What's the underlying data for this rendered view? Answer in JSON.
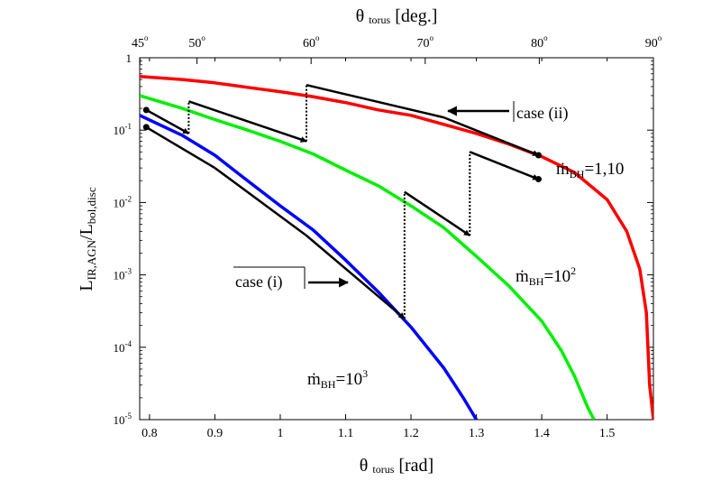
{
  "chart_data": {
    "type": "line",
    "xlabel": {
      "main": "θ",
      "sub": "torus",
      "unit": "[rad]"
    },
    "x2label": {
      "main": "θ",
      "sub": "torus",
      "unit": "[deg.]"
    },
    "ylabel": {
      "main": "L",
      "sub1": "IR,AGN",
      "sep": "/L",
      "sub2": "bol,disc"
    },
    "xlim": [
      0.785,
      1.5708
    ],
    "ylim": [
      1e-05,
      1
    ],
    "yscale": "log",
    "x_ticks": [
      {
        "value": 0.8,
        "label": "0.8"
      },
      {
        "value": 0.9,
        "label": "0.9"
      },
      {
        "value": 1.0,
        "label": "1"
      },
      {
        "value": 1.1,
        "label": "1.1"
      },
      {
        "value": 1.2,
        "label": "1.2"
      },
      {
        "value": 1.3,
        "label": "1.3"
      },
      {
        "value": 1.4,
        "label": "1.4"
      },
      {
        "value": 1.5,
        "label": "1.5"
      }
    ],
    "x2_ticks": [
      {
        "deg": 45,
        "label": "45"
      },
      {
        "deg": 50,
        "label": "50"
      },
      {
        "deg": 60,
        "label": "60"
      },
      {
        "deg": 70,
        "label": "70"
      },
      {
        "deg": 80,
        "label": "80"
      },
      {
        "deg": 90,
        "label": "90"
      }
    ],
    "x2_degree_mark": "o",
    "y_ticks": [
      {
        "value": 1,
        "base": "1",
        "exp": ""
      },
      {
        "value": 0.1,
        "base": "10",
        "exp": "-1"
      },
      {
        "value": 0.01,
        "base": "10",
        "exp": "-2"
      },
      {
        "value": 0.001,
        "base": "10",
        "exp": "-3"
      },
      {
        "value": 0.0001,
        "base": "10",
        "exp": "-4"
      },
      {
        "value": 1e-05,
        "base": "10",
        "exp": "-5"
      }
    ],
    "series": [
      {
        "name": "ṁBH=1,10",
        "color": "#ff0000",
        "x": [
          0.785,
          0.85,
          0.9,
          0.95,
          1.0,
          1.05,
          1.1,
          1.15,
          1.2,
          1.25,
          1.3,
          1.35,
          1.4,
          1.45,
          1.5,
          1.53,
          1.55,
          1.56,
          1.565,
          1.5708
        ],
        "y": [
          0.55,
          0.5,
          0.45,
          0.39,
          0.34,
          0.29,
          0.24,
          0.19,
          0.16,
          0.12,
          0.09,
          0.064,
          0.043,
          0.026,
          0.011,
          0.004,
          0.0012,
          0.0003,
          3e-05,
          1e-05
        ]
      },
      {
        "name": "ṁBH=10^2",
        "color": "#00ee00",
        "x": [
          0.785,
          0.85,
          0.9,
          0.95,
          1.0,
          1.05,
          1.1,
          1.15,
          1.2,
          1.25,
          1.3,
          1.35,
          1.4,
          1.43,
          1.45,
          1.47,
          1.48
        ],
        "y": [
          0.3,
          0.2,
          0.14,
          0.1,
          0.07,
          0.047,
          0.028,
          0.017,
          0.009,
          0.0045,
          0.0018,
          0.0007,
          0.00023,
          9e-05,
          4e-05,
          1.5e-05,
          1e-05
        ]
      },
      {
        "name": "ṁBH=10^3",
        "color": "#0000ff",
        "x": [
          0.785,
          0.85,
          0.9,
          0.95,
          1.0,
          1.05,
          1.1,
          1.15,
          1.2,
          1.25,
          1.28,
          1.3
        ],
        "y": [
          0.16,
          0.085,
          0.045,
          0.02,
          0.009,
          0.0042,
          0.0016,
          0.00058,
          0.00019,
          5.2e-05,
          2e-05,
          1e-05
        ]
      }
    ],
    "paths": [
      {
        "name": "case-ii-path",
        "points": [
          [
            0.795,
            0.19
          ],
          [
            0.86,
            0.09
          ],
          [
            0.86,
            0.25
          ],
          [
            1.04,
            0.07
          ],
          [
            1.04,
            0.42
          ],
          [
            1.25,
            0.15
          ],
          [
            1.395,
            0.045
          ]
        ],
        "dotted_segments": [
          1,
          3
        ],
        "arrow_at": [
          1,
          3,
          6
        ],
        "start_dot": true,
        "end_dot": true
      },
      {
        "name": "case-i-path",
        "points": [
          [
            0.795,
            0.11
          ],
          [
            0.9,
            0.03
          ],
          [
            1.04,
            0.0035
          ],
          [
            1.19,
            0.00025
          ],
          [
            1.19,
            0.014
          ],
          [
            1.29,
            0.0035
          ],
          [
            1.29,
            0.05
          ],
          [
            1.395,
            0.021
          ]
        ],
        "dotted_segments": [
          3,
          5
        ],
        "arrow_at": [
          3,
          5,
          7
        ],
        "start_dot": true,
        "end_dot": true
      }
    ],
    "annotations": [
      {
        "name": "case-ii-label",
        "text": "case (ii)"
      },
      {
        "name": "case-i-label",
        "text": "case (i)"
      },
      {
        "name": "mdot-1-10-label",
        "base": "ṁ",
        "sub": "BH",
        "rest": "=1,10",
        "sup": ""
      },
      {
        "name": "mdot-100-label",
        "base": "ṁ",
        "sub": "BH",
        "rest": "=10",
        "sup": "2"
      },
      {
        "name": "mdot-1000-label",
        "base": "ṁ",
        "sub": "BH",
        "rest": "=10",
        "sup": "3"
      }
    ]
  }
}
